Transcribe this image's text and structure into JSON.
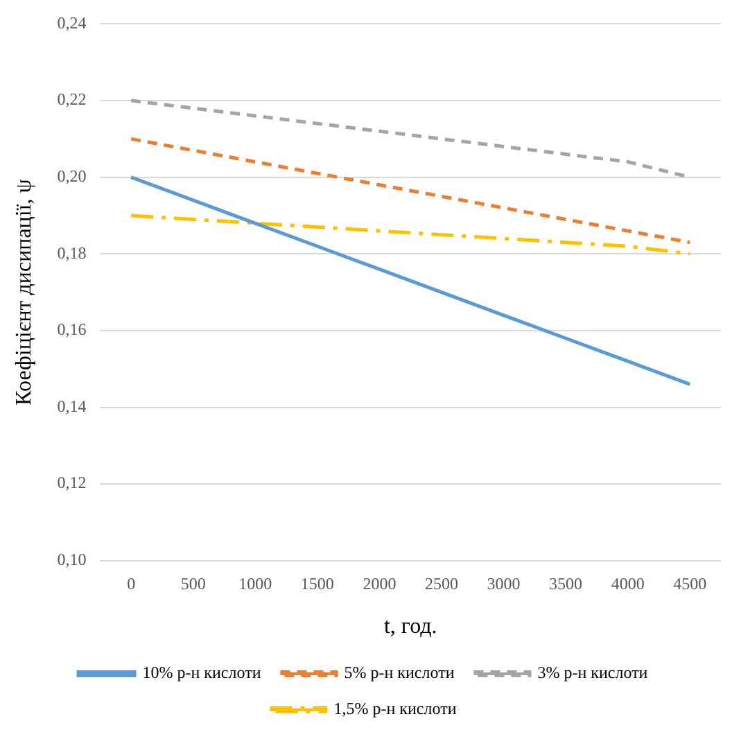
{
  "chart_data": {
    "type": "line",
    "xlabel": "t, год.",
    "ylabel": "Коефіцієнт дисипації, ψ",
    "categories": [
      "0",
      "500",
      "1000",
      "1500",
      "2000",
      "2500",
      "3000",
      "3500",
      "4000",
      "4500"
    ],
    "series": [
      {
        "name": "10% р-н кислоти",
        "color": "#5b9bd5",
        "line_style": "solid",
        "values": [
          0.2,
          0.194,
          0.188,
          0.182,
          0.176,
          0.17,
          0.164,
          0.158,
          0.152,
          0.146
        ]
      },
      {
        "name": "5% р-н кислоти",
        "color": "#ed7d31",
        "line_style": "dashed",
        "values": [
          0.21,
          0.207,
          0.204,
          0.201,
          0.198,
          0.195,
          0.192,
          0.189,
          0.186,
          0.183
        ]
      },
      {
        "name": "3% р-н кислоти",
        "color": "#a5a5a5",
        "line_style": "dashed",
        "values": [
          0.22,
          0.218,
          0.216,
          0.214,
          0.212,
          0.21,
          0.208,
          0.206,
          0.204,
          0.2
        ]
      },
      {
        "name": "1,5% р-н кислоти",
        "color": "#ffc000",
        "line_style": "dashdot",
        "values": [
          0.19,
          0.189,
          0.188,
          0.187,
          0.186,
          0.185,
          0.184,
          0.183,
          0.182,
          0.18
        ]
      }
    ],
    "ylim": [
      0.1,
      0.24
    ],
    "yticks": [
      {
        "value": 0.1,
        "label": "0,10"
      },
      {
        "value": 0.12,
        "label": "0,12"
      },
      {
        "value": 0.14,
        "label": "0,14"
      },
      {
        "value": 0.16,
        "label": "0,16"
      },
      {
        "value": 0.18,
        "label": "0,18"
      },
      {
        "value": 0.2,
        "label": "0,20"
      },
      {
        "value": 0.22,
        "label": "0,22"
      },
      {
        "value": 0.24,
        "label": "0,24"
      }
    ],
    "grid": "y",
    "legend": "bottom",
    "marker": "none"
  }
}
